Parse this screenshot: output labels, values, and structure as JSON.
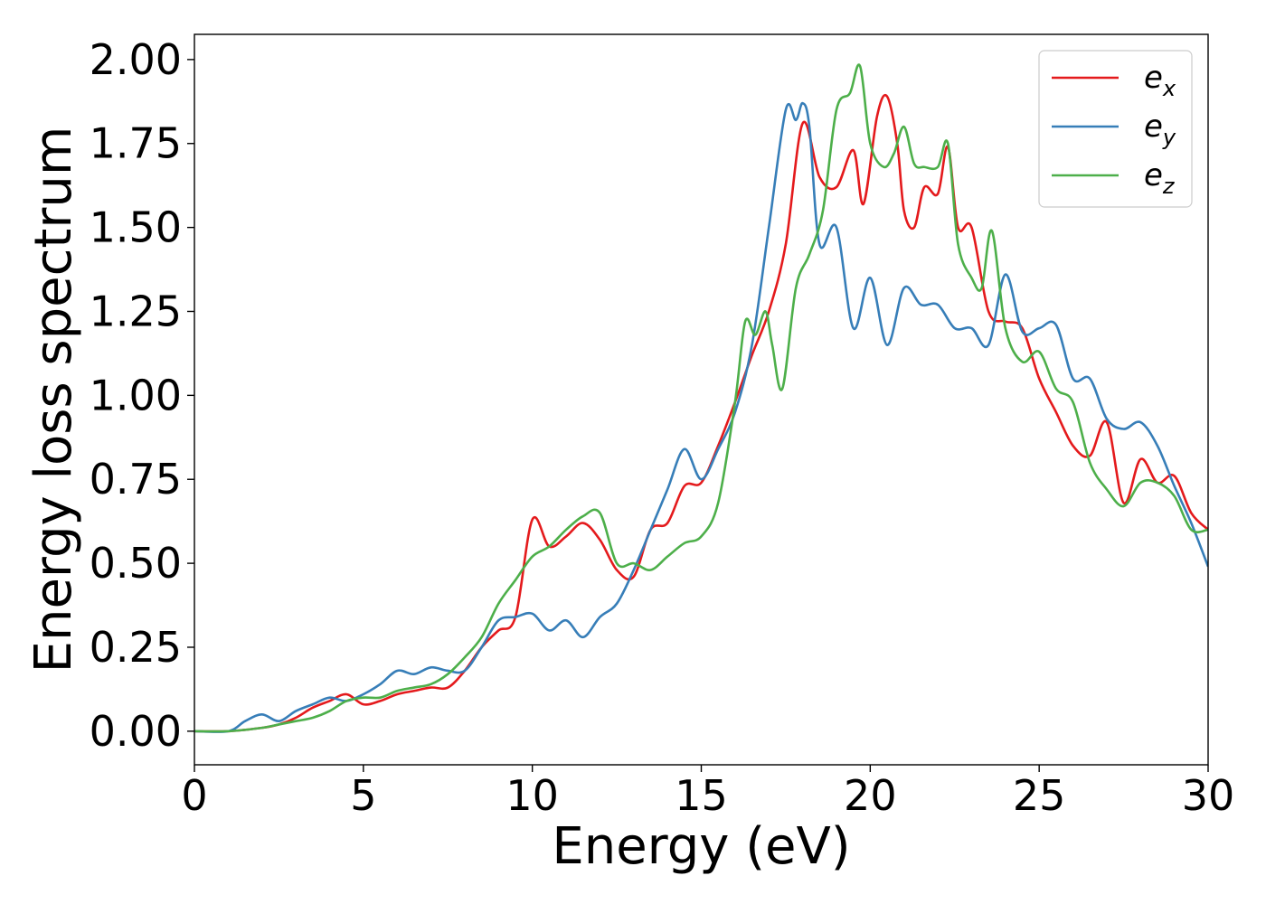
{
  "chart_data": {
    "type": "line",
    "title": "",
    "xlabel": "Energy (eV)",
    "ylabel": "Energy loss spectrum",
    "xlim": [
      0,
      30
    ],
    "ylim": [
      -0.1,
      2.075
    ],
    "xticks": [
      0,
      5,
      10,
      15,
      20,
      25,
      30
    ],
    "xtick_labels": [
      "0",
      "5",
      "10",
      "15",
      "20",
      "25",
      "30"
    ],
    "yticks": [
      0.0,
      0.25,
      0.5,
      0.75,
      1.0,
      1.25,
      1.5,
      1.75,
      2.0
    ],
    "ytick_labels": [
      "0.00",
      "0.25",
      "0.50",
      "0.75",
      "1.00",
      "1.25",
      "1.50",
      "1.75",
      "2.00"
    ],
    "grid": false,
    "legend_position": "top-right",
    "series": [
      {
        "name": "e_x",
        "legend_base": "e",
        "legend_sub": "x",
        "color": "#e41a1c",
        "x": [
          0,
          1,
          2,
          2.5,
          3,
          3.5,
          4,
          4.5,
          5,
          5.5,
          6,
          6.5,
          7,
          7.5,
          8,
          8.5,
          9,
          9.5,
          10,
          10.5,
          11,
          11.5,
          12,
          12.5,
          13,
          13.5,
          14,
          14.5,
          15,
          15.5,
          16,
          16.5,
          17,
          17.5,
          18,
          18.5,
          19,
          19.5,
          19.8,
          20.2,
          20.5,
          20.8,
          21,
          21.3,
          21.6,
          22,
          22.3,
          22.6,
          23,
          23.5,
          24,
          24.5,
          25,
          25.5,
          26,
          26.5,
          27,
          27.5,
          28,
          28.5,
          29,
          29.5,
          30
        ],
        "y": [
          0,
          0,
          0.01,
          0.02,
          0.04,
          0.07,
          0.09,
          0.11,
          0.08,
          0.09,
          0.11,
          0.12,
          0.13,
          0.13,
          0.18,
          0.25,
          0.3,
          0.34,
          0.63,
          0.55,
          0.58,
          0.62,
          0.57,
          0.48,
          0.46,
          0.6,
          0.62,
          0.73,
          0.74,
          0.85,
          0.98,
          1.12,
          1.25,
          1.45,
          1.81,
          1.65,
          1.62,
          1.73,
          1.57,
          1.83,
          1.89,
          1.75,
          1.55,
          1.5,
          1.62,
          1.6,
          1.74,
          1.5,
          1.5,
          1.25,
          1.22,
          1.2,
          1.05,
          0.95,
          0.85,
          0.82,
          0.92,
          0.68,
          0.81,
          0.74,
          0.76,
          0.65,
          0.6
        ]
      },
      {
        "name": "e_y",
        "legend_base": "e",
        "legend_sub": "y",
        "color": "#377eb8",
        "x": [
          0,
          1,
          1.5,
          2,
          2.5,
          3,
          3.5,
          4,
          4.5,
          5,
          5.5,
          6,
          6.5,
          7,
          7.5,
          8,
          8.5,
          9,
          9.5,
          10,
          10.5,
          11,
          11.5,
          12,
          12.5,
          13,
          13.5,
          14,
          14.5,
          15,
          15.5,
          16,
          16.5,
          17,
          17.5,
          17.8,
          18,
          18.2,
          18.5,
          19,
          19.5,
          20,
          20.5,
          21,
          21.5,
          22,
          22.5,
          23,
          23.5,
          24,
          24.5,
          25,
          25.5,
          26,
          26.5,
          27,
          27.5,
          28,
          28.5,
          29,
          29.5,
          30
        ],
        "y": [
          0,
          0,
          0.03,
          0.05,
          0.03,
          0.06,
          0.08,
          0.1,
          0.09,
          0.11,
          0.14,
          0.18,
          0.17,
          0.19,
          0.18,
          0.18,
          0.25,
          0.33,
          0.34,
          0.35,
          0.3,
          0.33,
          0.28,
          0.34,
          0.38,
          0.48,
          0.6,
          0.72,
          0.84,
          0.75,
          0.84,
          0.95,
          1.15,
          1.5,
          1.85,
          1.82,
          1.87,
          1.8,
          1.45,
          1.5,
          1.2,
          1.35,
          1.15,
          1.32,
          1.27,
          1.27,
          1.2,
          1.2,
          1.15,
          1.36,
          1.19,
          1.2,
          1.21,
          1.05,
          1.05,
          0.93,
          0.9,
          0.92,
          0.85,
          0.73,
          0.62,
          0.49
        ]
      },
      {
        "name": "e_z",
        "legend_base": "e",
        "legend_sub": "z",
        "color": "#4daf4a",
        "x": [
          0,
          1,
          2,
          2.5,
          3,
          3.5,
          4,
          4.5,
          5,
          5.5,
          6,
          6.5,
          7,
          7.5,
          8,
          8.5,
          9,
          9.5,
          10,
          10.5,
          11,
          11.5,
          12,
          12.5,
          13,
          13.5,
          14,
          14.5,
          15,
          15.5,
          16,
          16.3,
          16.6,
          16.9,
          17.1,
          17.4,
          17.8,
          18.2,
          18.6,
          19,
          19.4,
          19.7,
          20,
          20.4,
          20.7,
          21,
          21.3,
          21.6,
          22,
          22.3,
          22.6,
          23,
          23.3,
          23.6,
          24,
          24.5,
          25,
          25.5,
          26,
          26.5,
          27,
          27.5,
          28,
          28.5,
          29,
          29.5,
          30
        ],
        "y": [
          0,
          0,
          0.01,
          0.02,
          0.03,
          0.04,
          0.06,
          0.09,
          0.1,
          0.1,
          0.12,
          0.13,
          0.14,
          0.17,
          0.22,
          0.28,
          0.38,
          0.45,
          0.52,
          0.55,
          0.6,
          0.64,
          0.65,
          0.5,
          0.5,
          0.48,
          0.52,
          0.56,
          0.58,
          0.68,
          0.98,
          1.22,
          1.18,
          1.25,
          1.15,
          1.02,
          1.32,
          1.42,
          1.55,
          1.85,
          1.9,
          1.98,
          1.75,
          1.68,
          1.72,
          1.8,
          1.69,
          1.68,
          1.68,
          1.75,
          1.45,
          1.35,
          1.32,
          1.49,
          1.2,
          1.1,
          1.13,
          1.02,
          0.98,
          0.8,
          0.72,
          0.67,
          0.74,
          0.74,
          0.7,
          0.6,
          0.6
        ]
      }
    ]
  }
}
